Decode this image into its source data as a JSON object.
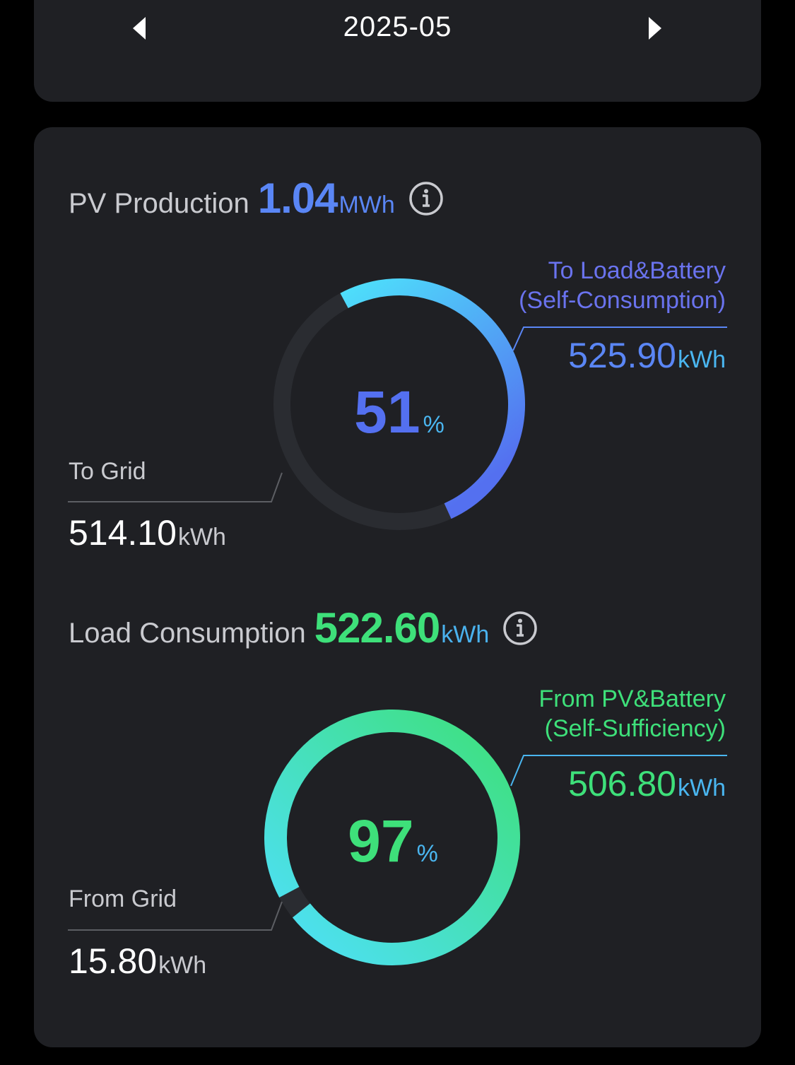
{
  "date_nav": {
    "label": "2025-05",
    "prev_icon": "caret-left-icon",
    "next_icon": "caret-right-icon"
  },
  "pv": {
    "title": "PV Production",
    "value": "1.04",
    "unit": "MWh",
    "info_icon": "info-icon",
    "percent": "51",
    "percent_sign": "%",
    "self_consumption_fraction": 0.51,
    "right_label_line1": "To Load&Battery",
    "right_label_line2": "(Self-Consumption)",
    "right_value": "525.90",
    "right_unit": "kWh",
    "left_label": "To Grid",
    "left_value": "514.10",
    "left_unit": "kWh"
  },
  "load": {
    "title": "Load Consumption",
    "value": "522.60",
    "unit": "kWh",
    "info_icon": "info-icon",
    "percent": "97",
    "percent_sign": "%",
    "self_sufficiency_fraction": 0.97,
    "right_label_line1": "From PV&Battery",
    "right_label_line2": "(Self-Sufficiency)",
    "right_value": "506.80",
    "right_unit": "kWh",
    "left_label": "From Grid",
    "left_value": "15.80",
    "left_unit": "kWh"
  },
  "colors": {
    "background": "#000000",
    "card": "#1f2024",
    "track": "#2a2c31",
    "pv_gradient_start": "#4ee0fb",
    "pv_gradient_end": "#5470f0",
    "load_gradient_start": "#4ee0fb",
    "load_gradient_end": "#3ee07a",
    "leader_line_right_pv": "#5a86f5",
    "leader_line_right_load": "#4ab6f0",
    "leader_line_left": "#5c5e63"
  }
}
